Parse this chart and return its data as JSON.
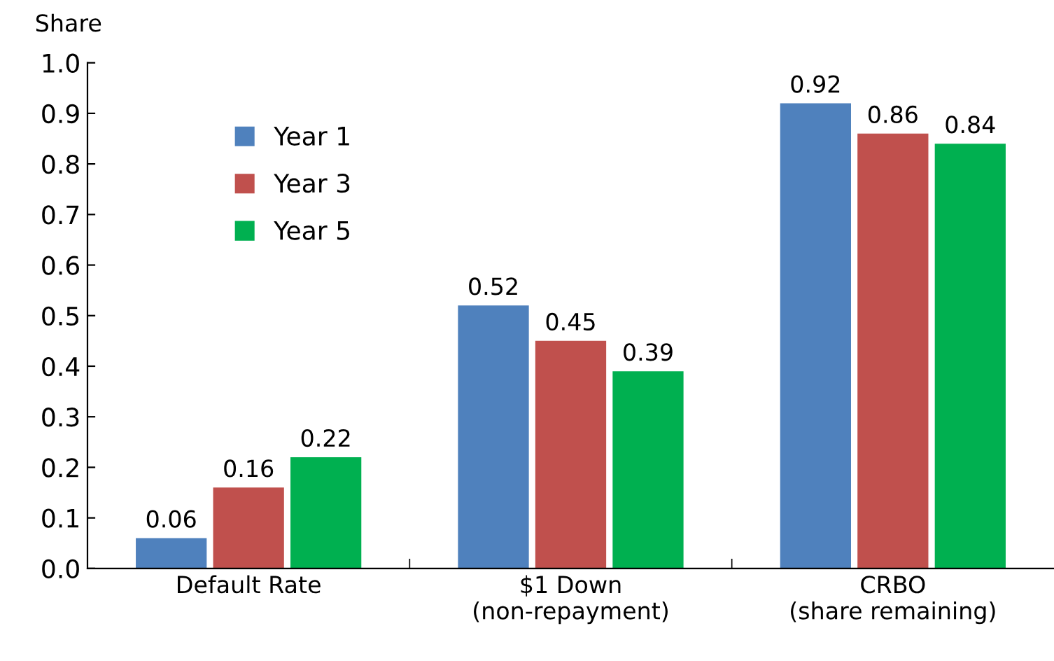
{
  "chart_data": {
    "type": "bar",
    "ylabel": "Share",
    "categories": [
      "Default Rate",
      "$1 Down\n(non-repayment)",
      "CRBO\n(share remaining)"
    ],
    "series": [
      {
        "name": "Year 1",
        "color": "#4f81bd",
        "values": [
          0.06,
          0.52,
          0.92
        ]
      },
      {
        "name": "Year 3",
        "color": "#c0504d",
        "values": [
          0.16,
          0.45,
          0.86
        ]
      },
      {
        "name": "Year 5",
        "color": "#00b050",
        "values": [
          0.22,
          0.39,
          0.84
        ]
      }
    ],
    "ylim": [
      0.0,
      1.0
    ],
    "yticks": [
      {
        "value": 0.0,
        "label": "0.0"
      },
      {
        "value": 0.1,
        "label": "0.1"
      },
      {
        "value": 0.2,
        "label": "0.2"
      },
      {
        "value": 0.3,
        "label": "0.3"
      },
      {
        "value": 0.4,
        "label": "0.4"
      },
      {
        "value": 0.5,
        "label": "0.5"
      },
      {
        "value": 0.6,
        "label": "0.6"
      },
      {
        "value": 0.7,
        "label": "0.7"
      },
      {
        "value": 0.8,
        "label": "0.8"
      },
      {
        "value": 0.9,
        "label": "0.9"
      },
      {
        "value": 1.0,
        "label": "1.0"
      }
    ],
    "data_labels": true,
    "legend": "top left",
    "grid": false
  }
}
